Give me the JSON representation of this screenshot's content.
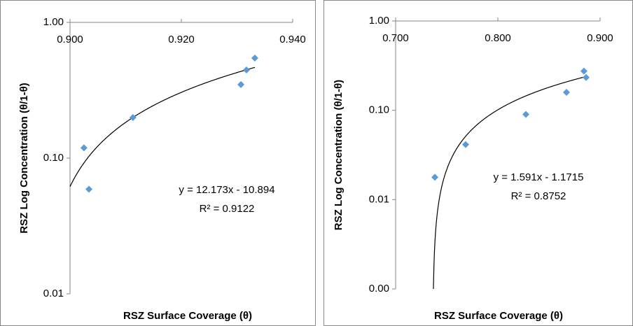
{
  "chart_data": [
    {
      "type": "scatter",
      "log_y": true,
      "color": "#5b9bd5",
      "trend_color": "#000000",
      "x_label": "RSZ Surface Coverage (θ)",
      "y_label": "RSZ Log Concentration (θ/1-θ)",
      "xlim": [
        0.9,
        0.94
      ],
      "xticks": [
        {
          "value": 0.9,
          "label": "0.900"
        },
        {
          "value": 0.92,
          "label": "0.920"
        },
        {
          "value": 0.94,
          "label": "0.940"
        }
      ],
      "ylim": [
        0.01,
        1
      ],
      "yticks": [
        {
          "value": 0.01,
          "label": "0.01"
        },
        {
          "value": 0.1,
          "label": "0.10"
        },
        {
          "value": 1,
          "label": "1.00"
        }
      ],
      "series": [
        {
          "x": [
            0.9025,
            0.9034,
            0.9113,
            0.9307,
            0.9317,
            0.9332
          ],
          "values": [
            0.119,
            0.059,
            0.199,
            0.348,
            0.446,
            0.546
          ]
        }
      ],
      "trendline": {
        "slope": 12.173,
        "intercept": -10.894,
        "equation": "y = 12.173x - 10.894",
        "r2": "R² = 0.9122"
      }
    },
    {
      "type": "scatter",
      "log_y": true,
      "color": "#5b9bd5",
      "trend_color": "#000000",
      "x_label": "RSZ Surface Coverage (θ)",
      "y_label": "RSZ Log Concentration (θ/1-θ)",
      "xlim": [
        0.7,
        0.9
      ],
      "xticks": [
        {
          "value": 0.7,
          "label": "0.700"
        },
        {
          "value": 0.8,
          "label": "0.800"
        },
        {
          "value": 0.9,
          "label": "0.900"
        }
      ],
      "ylim": [
        0.001,
        1
      ],
      "yticks": [
        {
          "value": 0.001,
          "label": "0.00"
        },
        {
          "value": 0.01,
          "label": "0.01"
        },
        {
          "value": 0.1,
          "label": "0.10"
        },
        {
          "value": 1,
          "label": "1.00"
        }
      ],
      "series": [
        {
          "x": [
            0.7384,
            0.7685,
            0.8274,
            0.8671,
            0.8842,
            0.8863
          ],
          "values": [
            0.0178,
            0.0414,
            0.09,
            0.159,
            0.275,
            0.233
          ]
        }
      ],
      "trendline": {
        "slope": 1.591,
        "intercept": -1.1715,
        "equation": "y = 1.591x - 1.1715",
        "r2": "R² = 0.8752"
      }
    }
  ]
}
